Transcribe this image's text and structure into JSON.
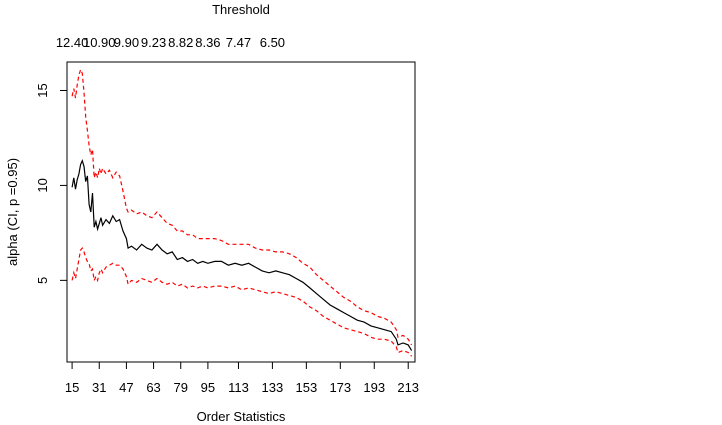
{
  "chart_data": {
    "type": "line",
    "title": "",
    "xlabel": "Order Statistics",
    "ylabel": "alpha (CI, p =0.95)",
    "top_axis_title": "Threshold",
    "xlim": [
      12,
      217
    ],
    "ylim": [
      0.7,
      16.5
    ],
    "x_ticks": [
      15,
      31,
      47,
      63,
      79,
      95,
      113,
      133,
      153,
      173,
      193,
      213
    ],
    "y_ticks": [
      5,
      10,
      15
    ],
    "top_ticks": [
      {
        "at": 15,
        "label": "12.40"
      },
      {
        "at": 31,
        "label": "10.90"
      },
      {
        "at": 47,
        "label": "9.90"
      },
      {
        "at": 63,
        "label": "9.23"
      },
      {
        "at": 79,
        "label": "8.82"
      },
      {
        "at": 95,
        "label": "8.36"
      },
      {
        "at": 113,
        "label": "7.47"
      },
      {
        "at": 133,
        "label": "6.50"
      }
    ],
    "series": [
      {
        "name": "estimate",
        "color": "#000000",
        "style": "solid",
        "x": [
          15,
          16,
          17,
          18,
          19,
          20,
          21,
          22,
          23,
          24,
          25,
          26,
          27,
          28,
          29,
          30,
          31,
          32,
          33,
          35,
          37,
          39,
          41,
          43,
          45,
          47,
          48,
          50,
          53,
          56,
          59,
          62,
          65,
          68,
          71,
          74,
          77,
          80,
          83,
          86,
          89,
          92,
          95,
          99,
          103,
          107,
          111,
          115,
          119,
          123,
          127,
          131,
          135,
          139,
          143,
          147,
          151,
          155,
          159,
          163,
          167,
          171,
          175,
          179,
          183,
          187,
          191,
          195,
          199,
          203,
          206,
          207,
          210,
          213,
          215
        ],
        "values": [
          9.9,
          10.4,
          9.8,
          10.3,
          10.6,
          11.1,
          11.3,
          11.0,
          10.2,
          10.5,
          9.0,
          8.6,
          9.6,
          7.8,
          8.1,
          7.7,
          8.0,
          8.3,
          7.9,
          8.2,
          8.0,
          8.4,
          8.1,
          8.2,
          7.6,
          7.2,
          6.7,
          6.8,
          6.6,
          6.9,
          6.7,
          6.6,
          6.9,
          6.6,
          6.4,
          6.5,
          6.1,
          6.2,
          6.0,
          6.1,
          5.9,
          6.0,
          5.9,
          6.0,
          6.0,
          5.8,
          5.9,
          5.8,
          5.9,
          5.7,
          5.5,
          5.4,
          5.5,
          5.4,
          5.3,
          5.1,
          4.9,
          4.6,
          4.3,
          4.0,
          3.7,
          3.5,
          3.3,
          3.1,
          2.9,
          2.8,
          2.6,
          2.5,
          2.4,
          2.3,
          1.9,
          1.6,
          1.7,
          1.6,
          1.3
        ]
      },
      {
        "name": "upper CI",
        "color": "#ff0000",
        "style": "dashed",
        "x": [
          15,
          16,
          17,
          18,
          19,
          20,
          21,
          22,
          23,
          24,
          25,
          26,
          27,
          28,
          29,
          30,
          31,
          32,
          33,
          35,
          37,
          39,
          41,
          43,
          45,
          47,
          48,
          50,
          53,
          56,
          59,
          62,
          65,
          68,
          71,
          74,
          77,
          80,
          83,
          86,
          89,
          92,
          95,
          99,
          103,
          107,
          111,
          115,
          119,
          123,
          127,
          131,
          135,
          139,
          143,
          147,
          151,
          155,
          159,
          163,
          167,
          171,
          175,
          179,
          183,
          187,
          191,
          195,
          199,
          203,
          206,
          207,
          210,
          213,
          215
        ],
        "values": [
          14.7,
          15.1,
          14.6,
          15.3,
          15.8,
          16.1,
          15.9,
          14.9,
          13.6,
          12.9,
          12.1,
          11.6,
          11.9,
          10.4,
          10.7,
          10.4,
          10.9,
          10.6,
          10.9,
          10.6,
          10.8,
          10.4,
          10.7,
          10.5,
          9.7,
          8.8,
          8.6,
          8.7,
          8.5,
          8.6,
          8.4,
          8.3,
          8.6,
          8.3,
          8.0,
          7.9,
          7.6,
          7.6,
          7.4,
          7.4,
          7.2,
          7.2,
          7.2,
          7.2,
          7.1,
          6.9,
          6.9,
          6.9,
          6.9,
          6.7,
          6.6,
          6.6,
          6.5,
          6.5,
          6.4,
          6.2,
          5.9,
          5.7,
          5.3,
          5.0,
          4.7,
          4.4,
          4.1,
          3.9,
          3.6,
          3.4,
          3.3,
          3.1,
          3.0,
          2.8,
          2.4,
          2.0,
          2.1,
          1.9,
          1.6
        ]
      },
      {
        "name": "lower CI",
        "color": "#ff0000",
        "style": "dashed",
        "x": [
          15,
          16,
          17,
          18,
          19,
          20,
          21,
          22,
          23,
          24,
          25,
          26,
          27,
          28,
          29,
          30,
          31,
          32,
          33,
          35,
          37,
          39,
          41,
          43,
          45,
          47,
          48,
          50,
          53,
          56,
          59,
          62,
          65,
          68,
          71,
          74,
          77,
          80,
          83,
          86,
          89,
          92,
          95,
          99,
          103,
          107,
          111,
          115,
          119,
          123,
          127,
          131,
          135,
          139,
          143,
          147,
          151,
          155,
          159,
          163,
          167,
          171,
          175,
          179,
          183,
          187,
          191,
          195,
          199,
          203,
          206,
          207,
          210,
          213,
          215
        ],
        "values": [
          5.0,
          5.4,
          5.1,
          5.6,
          6.1,
          6.6,
          6.7,
          6.5,
          6.2,
          6.0,
          5.9,
          5.5,
          5.6,
          5.0,
          5.2,
          5.0,
          5.4,
          5.6,
          5.4,
          5.7,
          5.8,
          5.9,
          5.8,
          5.8,
          5.6,
          5.2,
          4.8,
          5.0,
          4.9,
          5.1,
          5.0,
          4.9,
          5.1,
          4.9,
          4.8,
          4.9,
          4.7,
          4.8,
          4.6,
          4.7,
          4.6,
          4.7,
          4.6,
          4.7,
          4.7,
          4.6,
          4.7,
          4.5,
          4.6,
          4.5,
          4.4,
          4.3,
          4.4,
          4.3,
          4.2,
          4.1,
          3.9,
          3.6,
          3.4,
          3.1,
          2.9,
          2.7,
          2.5,
          2.4,
          2.3,
          2.2,
          2.0,
          1.9,
          1.9,
          1.8,
          1.5,
          1.2,
          1.3,
          1.2,
          1.0
        ]
      }
    ]
  }
}
